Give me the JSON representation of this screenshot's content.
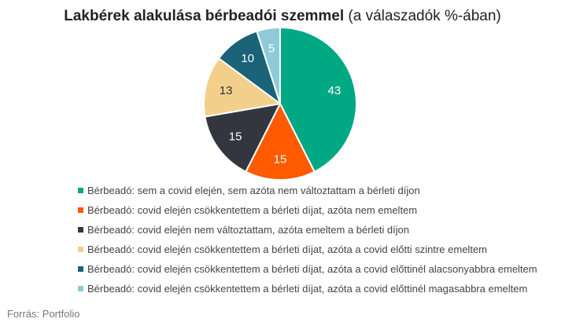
{
  "header": {
    "title_bold": "Lakbérek alakulása bérbeadói szemmel",
    "title_normal": " (a válaszadók %-ában)"
  },
  "chart_data": {
    "type": "pie",
    "title": "Lakbérek alakulása bérbeadói szemmel (a válaszadók %-ában)",
    "slices": [
      {
        "label": "Bérbeadó: sem a covid elején, sem azóta nem változtattam a bérleti díjon",
        "value": 43,
        "color": "#00a884",
        "label_color": "#ffffff"
      },
      {
        "label": "Bérbeadó: covid elején csökkentettem a bérleti díjat, azóta nem emeltem",
        "value": 15,
        "color": "#ff5a00",
        "label_color": "#ffffff"
      },
      {
        "label": "Bérbeadó: covid elején nem változtattam, azóta emeltem a bérleti díjon",
        "value": 15,
        "color": "#33363f",
        "label_color": "#ffffff"
      },
      {
        "label": "Bérbeadó: covid elején csökkentettem a bérleti díjat, azóta a covid előtti szintre emeltem",
        "value": 13,
        "color": "#f2d08c",
        "label_color": "#333333"
      },
      {
        "label": "Bérbeadó: covid elején csökkentettem a bérleti díjat, azóta a covid előttinél alacsonyabbra emeltem",
        "value": 10,
        "color": "#1a6378",
        "label_color": "#ffffff"
      },
      {
        "label": "Bérbeadó: covid elején csökkentettem a bérleti díjat, azóta a covid előttinél magasabbra emeltem",
        "value": 5,
        "color": "#8ecbd6",
        "label_color": "#ffffff"
      }
    ],
    "legend_position": "bottom-left"
  },
  "footer": {
    "source": "Forrás: Portfolio"
  }
}
